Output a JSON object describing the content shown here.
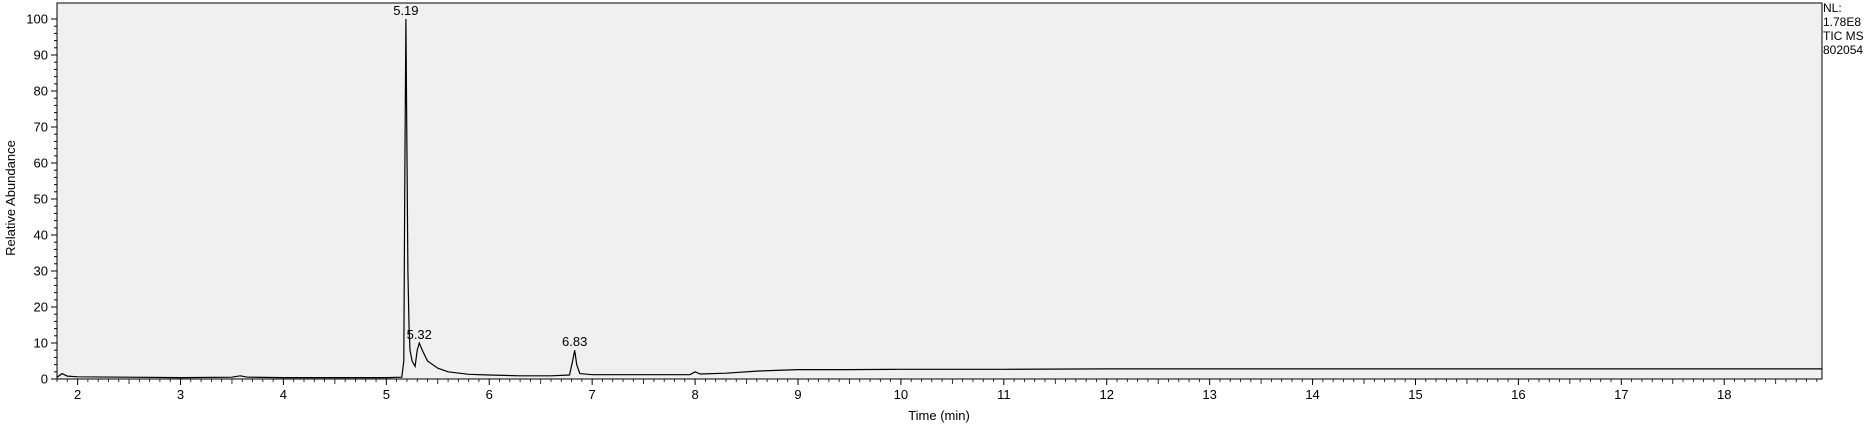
{
  "chart_data": {
    "type": "line",
    "title": "",
    "xlabel": "Time (min)",
    "ylabel": "Relative Abundance",
    "xlim": [
      1.8,
      18.95
    ],
    "ylim": [
      0,
      100
    ],
    "grid": false,
    "x_major_ticks": [
      2,
      3,
      4,
      5,
      6,
      7,
      8,
      9,
      10,
      11,
      12,
      13,
      14,
      15,
      16,
      17,
      18
    ],
    "x_tick_labels": [
      "2",
      "3",
      "4",
      "5",
      "6",
      "7",
      "8",
      "9",
      "10",
      "11",
      "12",
      "13",
      "14",
      "15",
      "16",
      "17",
      "18"
    ],
    "y_major_ticks": [
      0,
      10,
      20,
      30,
      40,
      50,
      60,
      70,
      80,
      90,
      100
    ],
    "y_tick_labels": [
      "0",
      "10",
      "20",
      "30",
      "40",
      "50",
      "60",
      "70",
      "80",
      "90",
      "100"
    ],
    "series": [
      {
        "color": "#000000",
        "x": [
          1.8,
          1.85,
          1.9,
          2.0,
          2.5,
          3.0,
          3.5,
          3.58,
          3.65,
          4.0,
          4.5,
          5.0,
          5.15,
          5.17,
          5.18,
          5.19,
          5.2,
          5.21,
          5.22,
          5.23,
          5.25,
          5.28,
          5.3,
          5.32,
          5.35,
          5.4,
          5.5,
          5.6,
          5.8,
          6.0,
          6.3,
          6.6,
          6.78,
          6.81,
          6.83,
          6.85,
          6.88,
          7.0,
          7.5,
          7.95,
          8.0,
          8.05,
          8.3,
          8.6,
          9.0,
          9.5,
          10.0,
          11.0,
          12.0,
          13.0,
          14.0,
          15.0,
          16.0,
          17.0,
          18.0,
          18.95
        ],
        "y": [
          0.5,
          1.5,
          0.8,
          0.6,
          0.5,
          0.4,
          0.5,
          0.9,
          0.5,
          0.4,
          0.4,
          0.4,
          0.5,
          5,
          60,
          100,
          65,
          30,
          15,
          8,
          5,
          3.5,
          8,
          10,
          8,
          5,
          3,
          2,
          1.3,
          1.1,
          0.9,
          0.9,
          1.1,
          5,
          8,
          4,
          1.5,
          1.2,
          1.2,
          1.2,
          2,
          1.4,
          1.6,
          2.2,
          2.6,
          2.6,
          2.7,
          2.7,
          2.8,
          2.8,
          2.8,
          2.8,
          2.8,
          2.8,
          2.8,
          2.8
        ]
      }
    ],
    "annotations": [
      {
        "x": 5.19,
        "y": 100,
        "text": "5.19"
      },
      {
        "x": 5.32,
        "y": 10,
        "text": "5.32"
      },
      {
        "x": 6.83,
        "y": 8,
        "text": "6.83"
      }
    ]
  },
  "info_panel": {
    "lines": [
      "NL:",
      "1.78E8",
      "TIC  MS",
      "802054"
    ]
  }
}
